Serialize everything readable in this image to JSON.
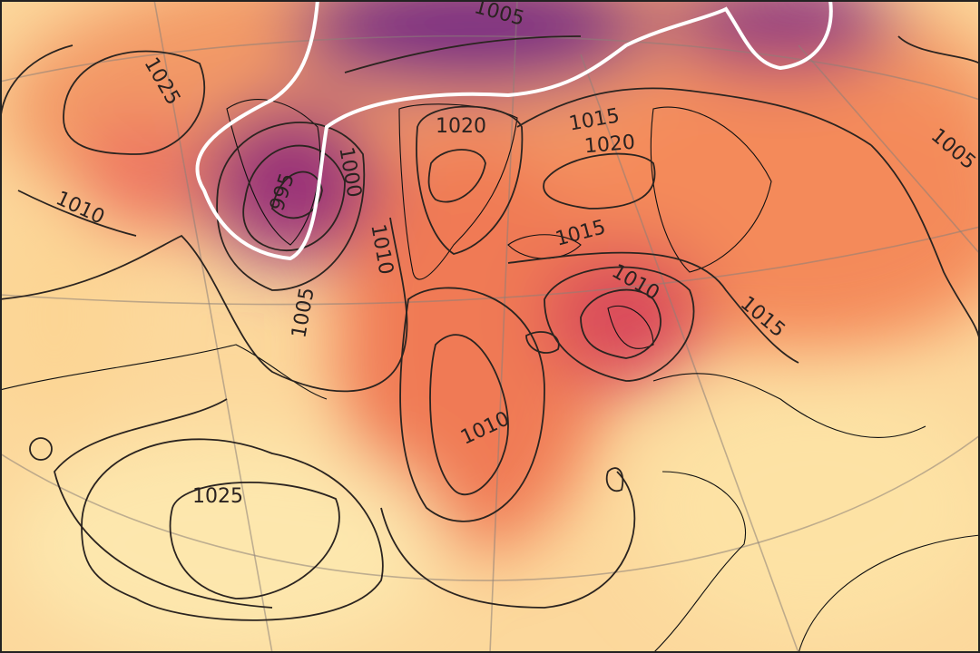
{
  "contour_labels": [
    "1005",
    "1025",
    "1010",
    "995",
    "1000",
    "1010",
    "1005",
    "1020",
    "1015",
    "1020",
    "1015",
    "1010",
    "1015",
    "1010",
    "1025",
    "1005"
  ]
}
